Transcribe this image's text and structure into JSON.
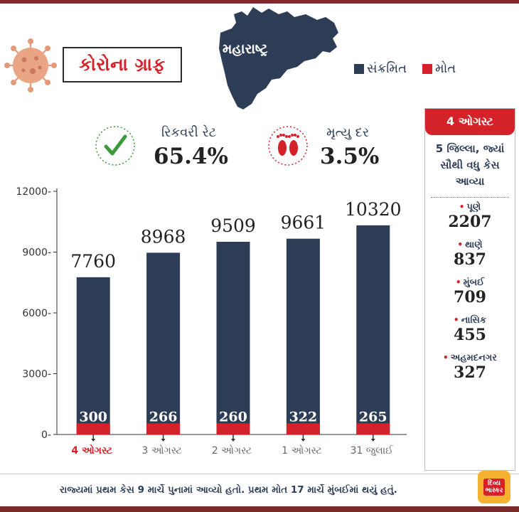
{
  "header": {
    "title": "કોરોના ગ્રાફ",
    "state": "મહારાષ્ટ્ર",
    "legend": [
      {
        "label": "સંક્રમિત",
        "color": "#2d3d55"
      },
      {
        "label": "મોત",
        "color": "#d32229"
      }
    ]
  },
  "rates": {
    "recovery_label": "રિકવરી રેટ",
    "recovery_value": "65.4%",
    "death_label": "મૃત્યુ દર",
    "death_value": "3.5%"
  },
  "chart_data": {
    "type": "bar",
    "categories": [
      "4 ઓગસ્ટ",
      "3 ઓગસ્ટ",
      "2 ઓગસ્ટ",
      "1 ઓગસ્ટ",
      "31 જુલાઈ"
    ],
    "series": [
      {
        "name": "સંક્રમિત",
        "values": [
          7760,
          8968,
          9509,
          9661,
          10320
        ],
        "color": "#2d3d55"
      },
      {
        "name": "મોત",
        "values": [
          300,
          266,
          260,
          322,
          265
        ],
        "color": "#d32229"
      }
    ],
    "yticks": [
      0,
      3000,
      6000,
      9000,
      12000
    ],
    "ylim": [
      0,
      12000
    ],
    "highlight_category": "4 ઓગસ્ટ",
    "highlight_color": "#d32229"
  },
  "sidebar": {
    "date": "4 ઓગસ્ટ",
    "heading": "5 જિલ્લા, જ્યાં સૌથી વધુ કેસ આવ્યા",
    "districts": [
      {
        "name": "પૂણે",
        "value": "2207"
      },
      {
        "name": "થાણે",
        "value": "837"
      },
      {
        "name": "મુંબઈ",
        "value": "709"
      },
      {
        "name": "નાસિક",
        "value": "455"
      },
      {
        "name": "અહમદનગર",
        "value": "327"
      }
    ]
  },
  "footer": {
    "note": "રાજ્યમાં પ્રથમ કેસ 9 માર્ચે પુનામાં આવ્યો હતો. પ્રથમ મોત 17 માર્ચે મુંબઈમાં થયું હતું.",
    "logo_line1": "દિવ્ય",
    "logo_line2": "ભાસ્કર"
  }
}
